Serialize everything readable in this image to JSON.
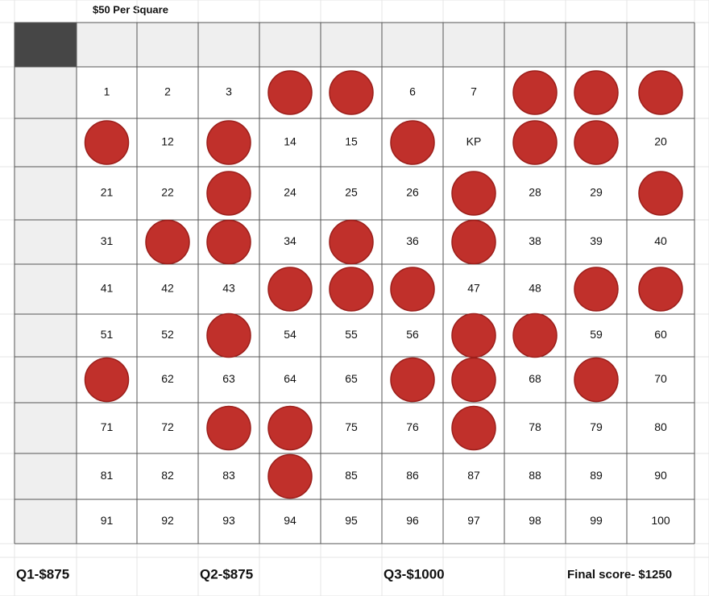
{
  "header": {
    "title": "$50 Per Square"
  },
  "grid": {
    "rows": [
      [
        "1",
        "2",
        "3",
        null,
        null,
        "6",
        "7",
        null,
        null,
        null
      ],
      [
        null,
        "12",
        null,
        "14",
        "15",
        null,
        "KP",
        null,
        null,
        "20"
      ],
      [
        "21",
        "22",
        null,
        "24",
        "25",
        "26",
        null,
        "28",
        "29",
        null
      ],
      [
        "31",
        null,
        null,
        "34",
        null,
        "36",
        null,
        "38",
        "39",
        "40"
      ],
      [
        "41",
        "42",
        "43",
        null,
        null,
        null,
        "47",
        "48",
        null,
        null
      ],
      [
        "51",
        "52",
        null,
        "54",
        "55",
        "56",
        null,
        null,
        "59",
        "60"
      ],
      [
        null,
        "62",
        "63",
        "64",
        "65",
        null,
        null,
        "68",
        null,
        "70"
      ],
      [
        "71",
        "72",
        null,
        null,
        "75",
        "76",
        null,
        "78",
        "79",
        "80"
      ],
      [
        "81",
        "82",
        "83",
        null,
        "85",
        "86",
        "87",
        "88",
        "89",
        "90"
      ],
      [
        "91",
        "92",
        "93",
        "94",
        "95",
        "96",
        "97",
        "98",
        "99",
        "100"
      ]
    ]
  },
  "footer": {
    "scores": [
      "Q1-$875",
      "Q2-$875",
      "Q3-$1000",
      "Final score- $1250"
    ]
  }
}
